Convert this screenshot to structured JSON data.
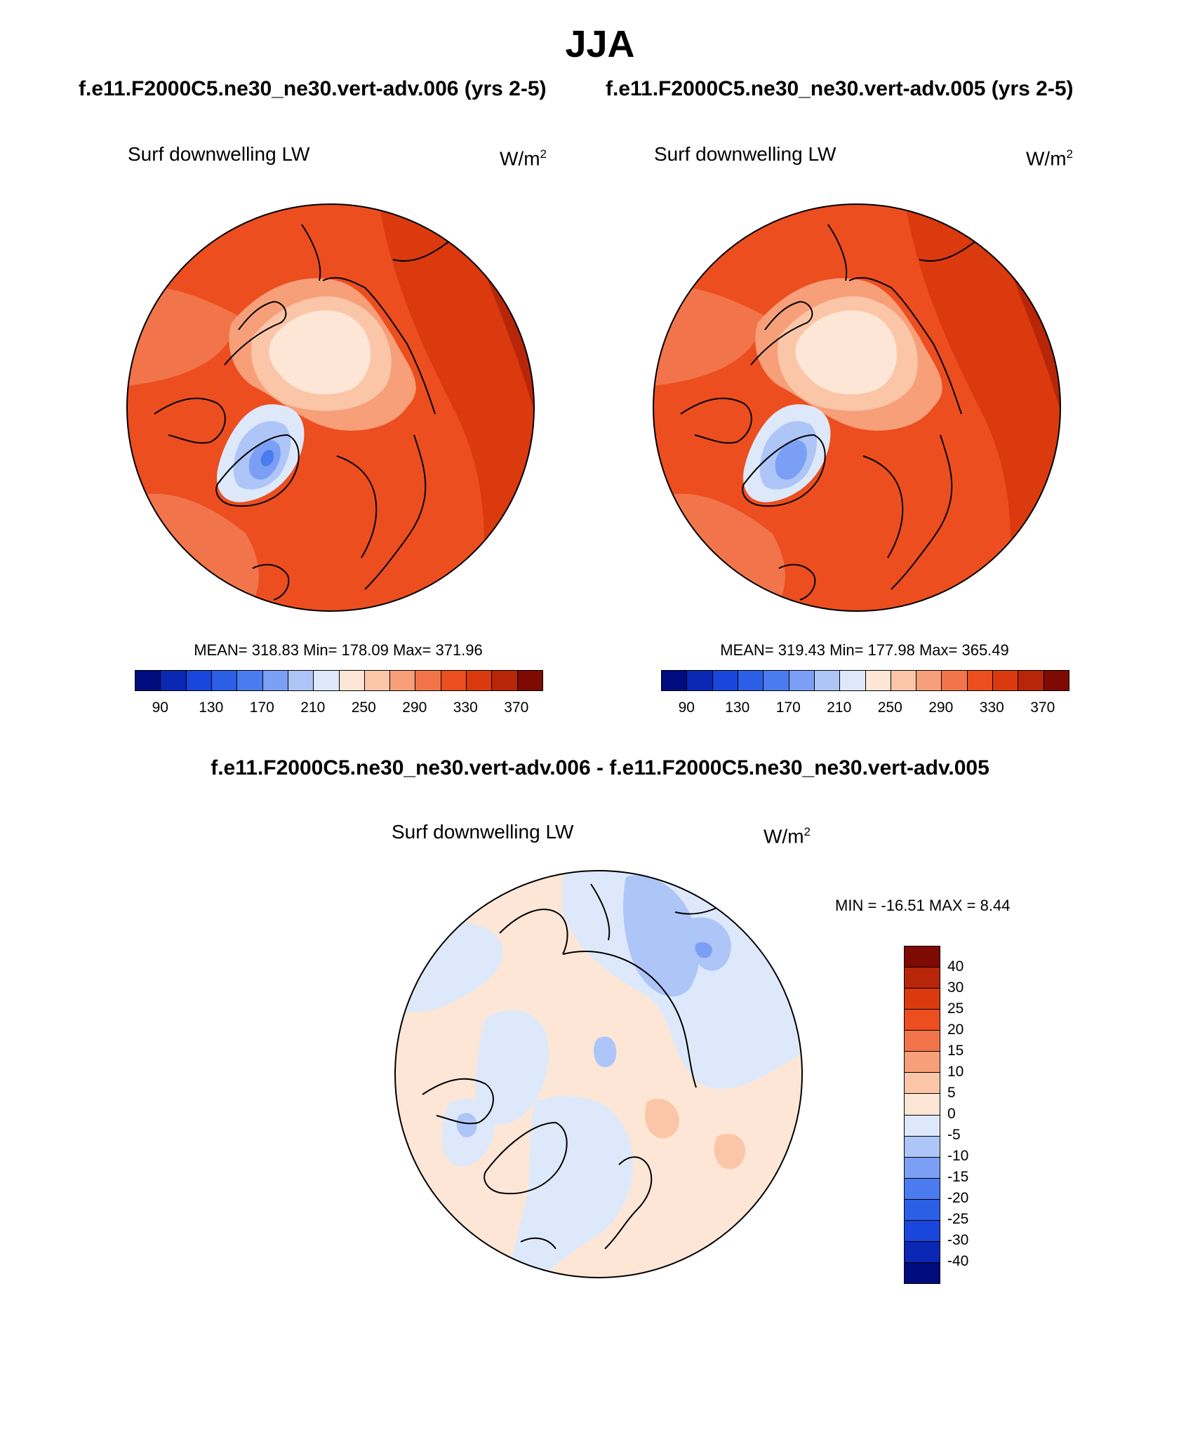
{
  "title": "JJA",
  "panels": [
    {
      "case_title": "f.e11.F2000C5.ne30_ne30.vert-adv.006 (yrs 2-5)",
      "variable": "Surf downwelling LW",
      "units_base": "W/m",
      "units_exp": "2",
      "stats": "MEAN= 318.83  Min= 178.09  Max= 371.96",
      "colorbar_ticks": [
        "90",
        "130",
        "170",
        "210",
        "250",
        "290",
        "330",
        "370"
      ]
    },
    {
      "case_title": "f.e11.F2000C5.ne30_ne30.vert-adv.005 (yrs 2-5)",
      "variable": "Surf downwelling LW",
      "units_base": "W/m",
      "units_exp": "2",
      "stats": "MEAN= 319.43  Min= 177.98  Max= 365.49",
      "colorbar_ticks": [
        "90",
        "130",
        "170",
        "210",
        "250",
        "290",
        "330",
        "370"
      ]
    }
  ],
  "difference": {
    "title": "f.e11.F2000C5.ne30_ne30.vert-adv.006 - f.e11.F2000C5.ne30_ne30.vert-adv.005",
    "variable": "Surf downwelling LW",
    "units_base": "W/m",
    "units_exp": "2",
    "stats": "MIN = -16.51 MAX =   8.44",
    "colorbar_ticks": [
      "40",
      "30",
      "25",
      "20",
      "15",
      "10",
      "5",
      "0",
      "-5",
      "-10",
      "-15",
      "-20",
      "-25",
      "-30",
      "-40"
    ]
  },
  "colors": {
    "abs_scale": [
      "#000c7d",
      "#0a28b4",
      "#1946dc",
      "#2a5fe6",
      "#4a7cf0",
      "#7b9ff5",
      "#aec5f8",
      "#dde9fb",
      "#fde6d6",
      "#fbc6a7",
      "#f79f79",
      "#f2744a",
      "#ec4e1f",
      "#da3a0e",
      "#b82609",
      "#7d0a03"
    ],
    "diff_scale": [
      "#7d0a03",
      "#b82609",
      "#da3a0e",
      "#ec4e1f",
      "#f2744a",
      "#f79f79",
      "#fbc6a7",
      "#fde6d6",
      "#dde9fb",
      "#aec5f8",
      "#7b9ff5",
      "#4a7cf0",
      "#2a5fe6",
      "#1946dc",
      "#0a28b4",
      "#000c7d"
    ]
  }
}
